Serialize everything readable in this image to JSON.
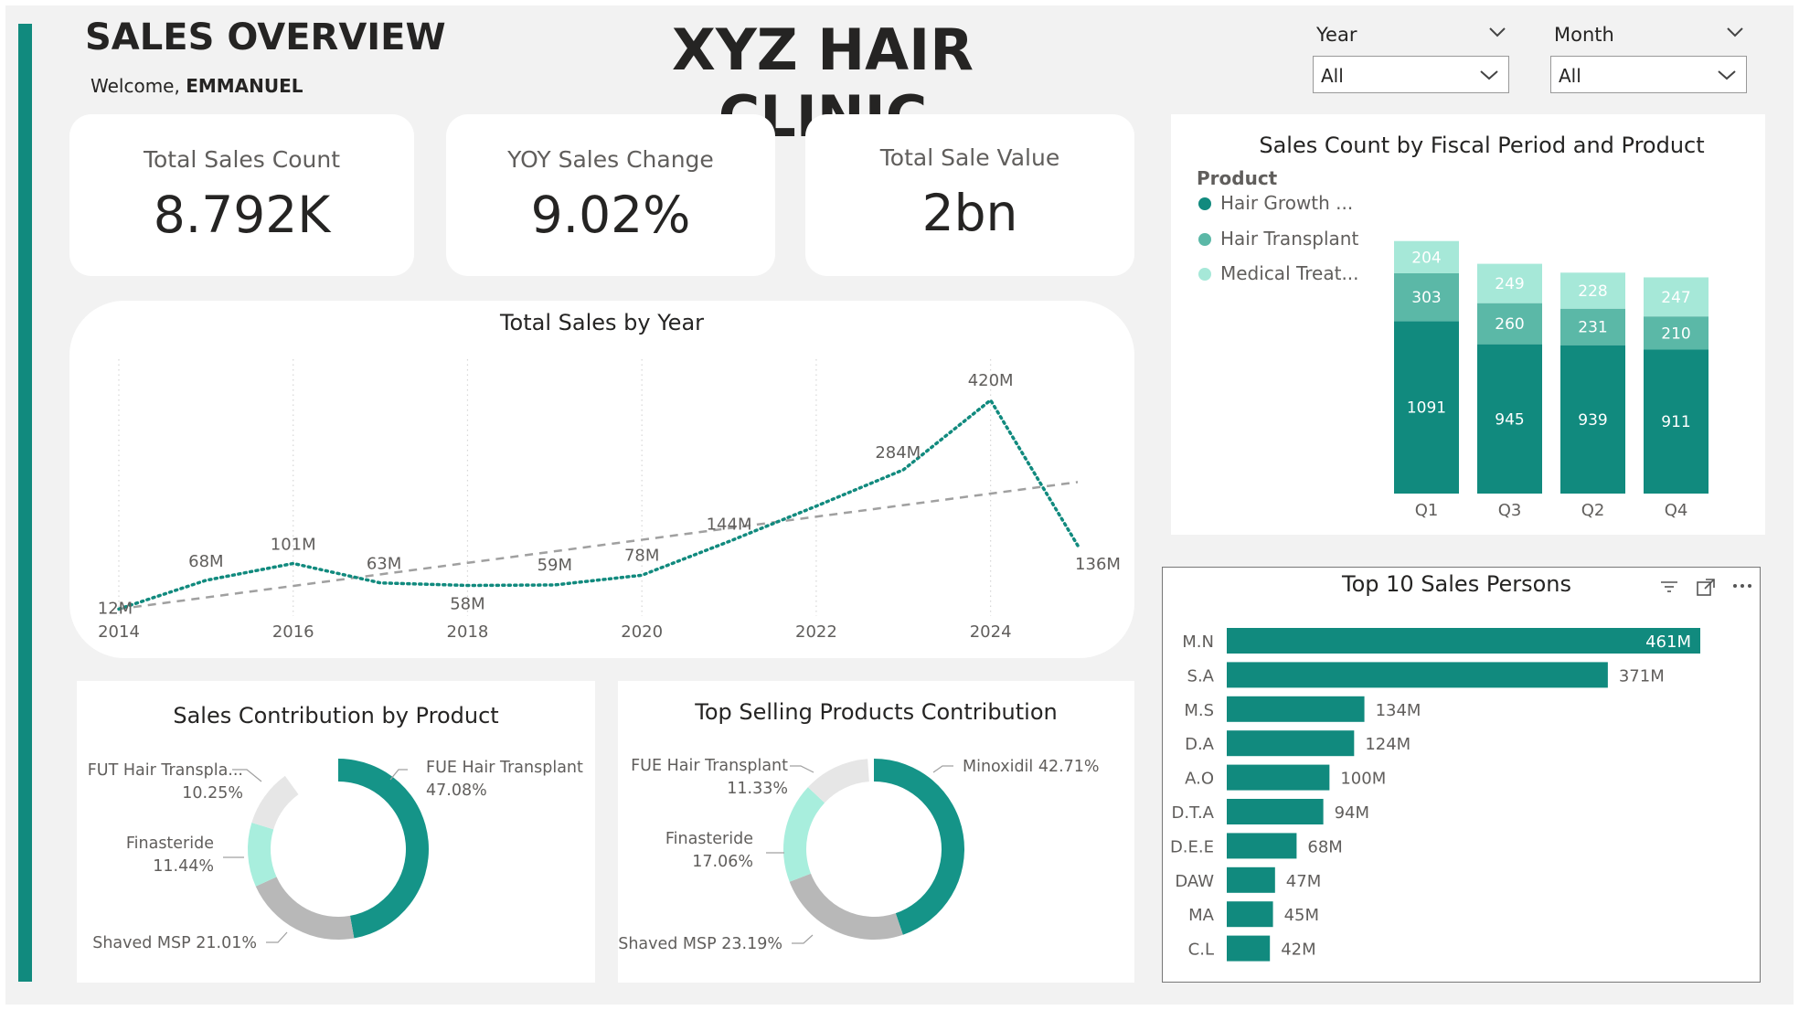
{
  "header": {
    "page_title": "SALES OVERVIEW",
    "welcome_prefix": "Welcome,",
    "user_name": "EMMANUEL",
    "clinic_name": "XYZ HAIR CLINIC"
  },
  "slicers": [
    {
      "label": "Year",
      "value": "All"
    },
    {
      "label": "Month",
      "value": "All"
    }
  ],
  "kpis": [
    {
      "label": "Total Sales Count",
      "value": "8.792K"
    },
    {
      "label": "YOY Sales Change",
      "value": "9.02%"
    },
    {
      "label": "Total Sale Value",
      "value": "2bn"
    }
  ],
  "colors": {
    "accent": "#118A7E",
    "mid_teal": "#5BB8A7",
    "light_teal": "#A6E8D8",
    "donut_teal": "#159488",
    "donut_mint": "#A8EEDD",
    "donut_grey": "#B8B8B8",
    "donut_lightgrey": "#E6E6E6",
    "trend": "#A0A0A0"
  },
  "icons": {
    "year_chevron": "chevron-down-icon",
    "month_chevron": "chevron-down-icon",
    "filter": "filter-icon",
    "focus": "focus-mode-icon",
    "more": "more-options-icon"
  },
  "chart_data": [
    {
      "id": "total_sales_by_year",
      "type": "line",
      "title": "Total Sales by Year",
      "x": [
        2014,
        2015,
        2016,
        2017,
        2018,
        2019,
        2020,
        2021,
        2022,
        2023,
        2024,
        2025
      ],
      "values": [
        12,
        68,
        101,
        63,
        58,
        59,
        78,
        144,
        213,
        284,
        420,
        136
      ],
      "labels": [
        "12M",
        "68M",
        "101M",
        "63M",
        "58M",
        "59M",
        "78M",
        "144M",
        "",
        "284M",
        "420M",
        "136M"
      ],
      "x_ticks": [
        2014,
        2016,
        2018,
        2020,
        2022,
        2024
      ],
      "ylim": [
        0,
        500
      ],
      "trend_line": [
        12,
        260
      ],
      "grid": "vertical-dotted"
    },
    {
      "id": "sales_count_by_fiscal_period",
      "type": "bar",
      "stacked": true,
      "title": "Sales Count by Fiscal Period and Product",
      "legend_title": "Product",
      "legend_placement": "top-left",
      "categories": [
        "Q1",
        "Q3",
        "Q2",
        "Q4"
      ],
      "series": [
        {
          "name": "Hair Growth ...",
          "values": [
            1091,
            945,
            939,
            911
          ]
        },
        {
          "name": "Hair Transplant",
          "values": [
            303,
            260,
            231,
            210
          ]
        },
        {
          "name": "Medical Treat...",
          "values": [
            204,
            249,
            228,
            247
          ]
        }
      ]
    },
    {
      "id": "top_10_sales_persons",
      "type": "bar",
      "orientation": "horizontal",
      "title": "Top 10 Sales Persons",
      "categories": [
        "M.N",
        "S.A",
        "M.S",
        "D.A",
        "A.O",
        "D.T.A",
        "D.E.E",
        "DAW",
        "MA",
        "C.L"
      ],
      "values": [
        461,
        371,
        134,
        124,
        100,
        94,
        68,
        47,
        45,
        42
      ],
      "labels": [
        "461M",
        "371M",
        "134M",
        "124M",
        "100M",
        "94M",
        "68M",
        "47M",
        "45M",
        "42M"
      ]
    },
    {
      "id": "sales_contribution_by_product",
      "type": "pie",
      "donut": true,
      "title": "Sales Contribution by Product",
      "slices": [
        {
          "name": "FUE Hair Transplant",
          "value": 47.08,
          "pct": "47.08%"
        },
        {
          "name": "Shaved MSP",
          "value": 21.01,
          "pct": "21.01%"
        },
        {
          "name": "Finasteride",
          "value": 11.44,
          "pct": "11.44%"
        },
        {
          "name": "FUT Hair Transpla...",
          "value": 10.25,
          "pct": "10.25%"
        }
      ]
    },
    {
      "id": "top_selling_products_contribution",
      "type": "pie",
      "donut": true,
      "title": "Top Selling Products Contribution",
      "slices": [
        {
          "name": "Minoxidil",
          "value": 42.71,
          "pct": "42.71%"
        },
        {
          "name": "Shaved MSP",
          "value": 23.19,
          "pct": "23.19%"
        },
        {
          "name": "Finasteride",
          "value": 17.06,
          "pct": "17.06%"
        },
        {
          "name": "FUE Hair Transplant",
          "value": 11.33,
          "pct": "11.33%"
        }
      ]
    }
  ]
}
